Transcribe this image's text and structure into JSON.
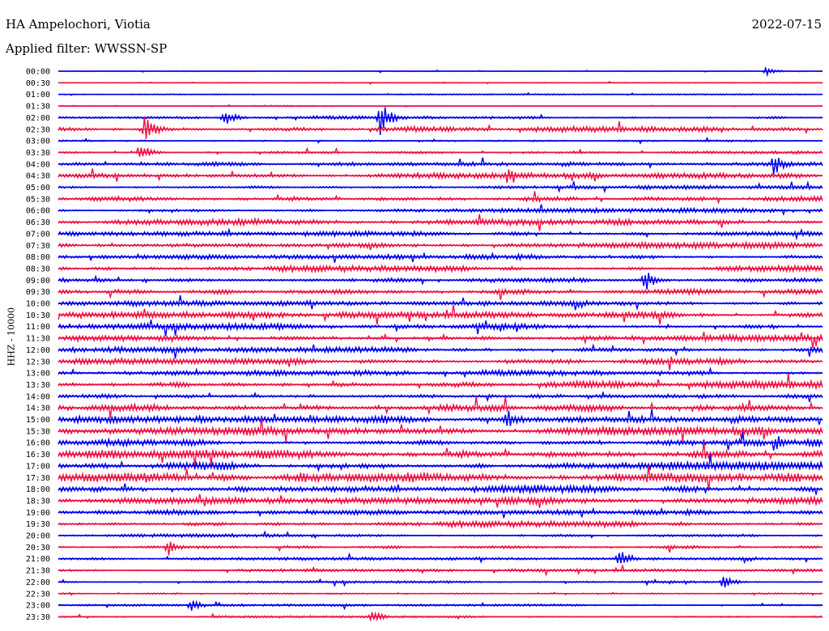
{
  "header": {
    "station": "HA Ampelochori, Viotia",
    "date": "2022-07-15",
    "filter": "Applied filter: WWSSN-SP",
    "channel": "HHZ - 10000"
  },
  "colors": {
    "trace_a": "#0000ee",
    "trace_b": "#ee1144"
  },
  "chart_data": {
    "type": "helicorder",
    "title": "HA Ampelochori, Viotia",
    "date": "2022-07-15",
    "filter": "WWSSN-SP",
    "ylabel": "HHZ - 10000",
    "row_minutes": 30,
    "rows": [
      "00:00",
      "00:30",
      "01:00",
      "01:30",
      "02:00",
      "02:30",
      "03:00",
      "03:30",
      "04:00",
      "04:30",
      "05:00",
      "05:30",
      "06:00",
      "06:30",
      "07:00",
      "07:30",
      "08:00",
      "08:30",
      "09:00",
      "09:30",
      "10:00",
      "10:30",
      "11:00",
      "11:30",
      "12:00",
      "12:30",
      "13:00",
      "13:30",
      "14:00",
      "14:30",
      "15:00",
      "15:30",
      "16:00",
      "16:30",
      "17:00",
      "17:30",
      "18:00",
      "18:30",
      "19:00",
      "19:30",
      "20:00",
      "20:30",
      "21:00",
      "21:30",
      "22:00",
      "22:30",
      "23:00",
      "23:30"
    ],
    "noise_level": [
      0.3,
      0.3,
      0.4,
      0.5,
      1.2,
      2.0,
      1.0,
      1.2,
      1.6,
      2.0,
      1.4,
      2.0,
      1.6,
      2.4,
      1.8,
      2.2,
      1.8,
      2.2,
      2.2,
      2.2,
      1.8,
      2.2,
      2.2,
      2.6,
      2.0,
      2.4,
      2.0,
      2.8,
      2.4,
      3.6,
      2.6,
      3.0,
      2.6,
      3.4,
      3.0,
      3.6,
      3.0,
      2.6,
      1.8,
      2.2,
      1.2,
      1.4,
      1.0,
      1.0,
      0.8,
      0.8,
      0.8,
      0.8
    ],
    "events": [
      {
        "row": "00:00",
        "minute": 27.8,
        "amplitude": 5
      },
      {
        "row": "02:00",
        "minute": 12.6,
        "amplitude": 24
      },
      {
        "row": "02:00",
        "minute": 6.5,
        "amplitude": 12
      },
      {
        "row": "02:30",
        "minute": 3.4,
        "amplitude": 18
      },
      {
        "row": "03:30",
        "minute": 3.2,
        "amplitude": 12
      },
      {
        "row": "04:00",
        "minute": 28.1,
        "amplitude": 16
      },
      {
        "row": "04:30",
        "minute": 17.6,
        "amplitude": 10
      },
      {
        "row": "09:00",
        "minute": 23.0,
        "amplitude": 16
      },
      {
        "row": "15:00",
        "minute": 17.6,
        "amplitude": 14
      },
      {
        "row": "16:00",
        "minute": 28.2,
        "amplitude": 12
      },
      {
        "row": "17:30",
        "minute": 9.5,
        "amplitude": 10
      },
      {
        "row": "20:30",
        "minute": 4.3,
        "amplitude": 12
      },
      {
        "row": "21:00",
        "minute": 22.0,
        "amplitude": 12
      },
      {
        "row": "22:00",
        "minute": 26.1,
        "amplitude": 10
      },
      {
        "row": "23:00",
        "minute": 5.2,
        "amplitude": 9
      },
      {
        "row": "23:30",
        "minute": 12.3,
        "amplitude": 10
      }
    ]
  }
}
